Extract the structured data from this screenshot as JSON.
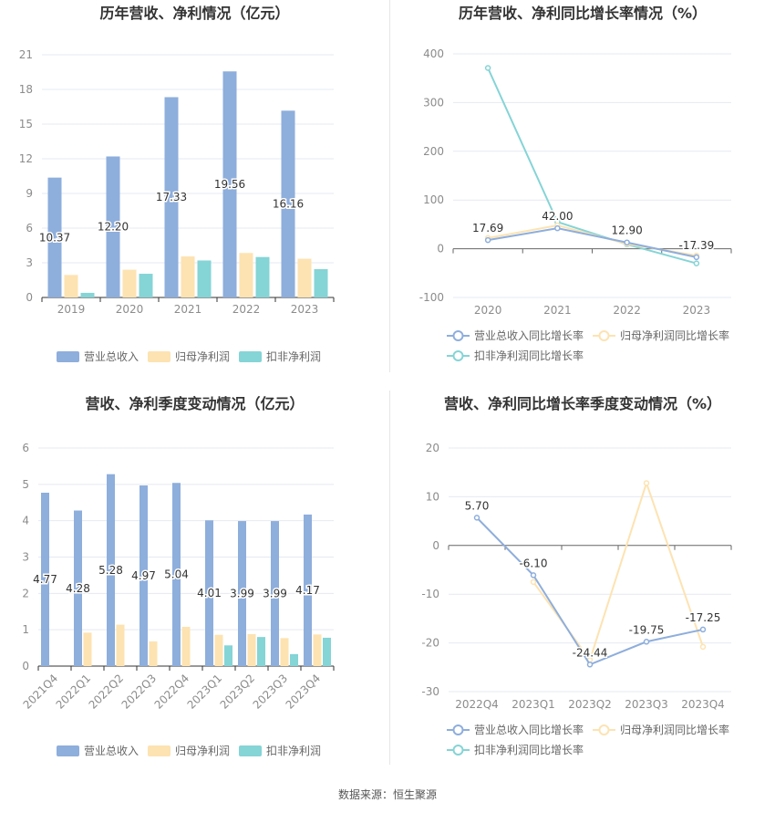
{
  "colors": {
    "revenue": "#8eaedc",
    "net_profit": "#fde3b2",
    "deducted_profit": "#85d4d6",
    "revenue_line": "#8eaedc",
    "net_profit_line": "#fde3b2",
    "deducted_profit_line": "#85d4d6",
    "grid": "#e6e9f0",
    "axis_text": "#8c8c8c",
    "title": "#333333",
    "label": "#333333"
  },
  "source_text": "数据来源：恒生聚源",
  "chart_data": [
    {
      "id": "annual-revenue-profit",
      "type": "bar",
      "title": "历年营收、净利情况（亿元）",
      "categories": [
        "2019",
        "2020",
        "2021",
        "2022",
        "2023"
      ],
      "ylim": [
        0,
        21
      ],
      "yticks": [
        0,
        3,
        6,
        9,
        12,
        15,
        18,
        21
      ],
      "series": [
        {
          "name": "营业总收入",
          "values": [
            10.37,
            12.2,
            17.33,
            19.56,
            16.16
          ],
          "labels": [
            "10.37",
            "12.20",
            "17.33",
            "19.56",
            "16.16"
          ]
        },
        {
          "name": "归母净利润",
          "values": [
            1.95,
            2.4,
            3.55,
            3.85,
            3.35
          ]
        },
        {
          "name": "扣非净利润",
          "values": [
            0.4,
            2.05,
            3.2,
            3.5,
            2.45
          ]
        }
      ],
      "legend_position": "bottom"
    },
    {
      "id": "annual-growth",
      "type": "line",
      "title": "历年营收、净利同比增长率情况（%）",
      "categories": [
        "2020",
        "2021",
        "2022",
        "2023"
      ],
      "ylim": [
        -100,
        400
      ],
      "yticks": [
        -100,
        0,
        100,
        200,
        300,
        400
      ],
      "series": [
        {
          "name": "营业总收入同比增长率",
          "values": [
            17.69,
            42.0,
            12.9,
            -17.39
          ],
          "labels": [
            "17.69",
            "42.00",
            "12.90",
            "-17.39"
          ]
        },
        {
          "name": "归母净利润同比增长率",
          "values": [
            22,
            48,
            10,
            -14
          ]
        },
        {
          "name": "扣非净利润同比增长率",
          "values": [
            371,
            55,
            9,
            -30
          ]
        }
      ],
      "legend_position": "bottom"
    },
    {
      "id": "quarterly-revenue-profit",
      "type": "bar",
      "title": "营收、净利季度变动情况（亿元）",
      "categories": [
        "2021Q4",
        "2022Q1",
        "2022Q2",
        "2022Q3",
        "2022Q4",
        "2023Q1",
        "2023Q2",
        "2023Q3",
        "2023Q4"
      ],
      "ylim": [
        0,
        6
      ],
      "yticks": [
        0,
        1,
        2,
        3,
        4,
        5,
        6
      ],
      "series": [
        {
          "name": "营业总收入",
          "values": [
            4.77,
            4.28,
            5.28,
            4.97,
            5.04,
            4.01,
            3.99,
            3.99,
            4.17
          ],
          "labels": [
            "4.77",
            "4.28",
            "5.28",
            "4.97",
            "5.04",
            "4.01",
            "3.99",
            "3.99",
            "4.17"
          ]
        },
        {
          "name": "归母净利润",
          "values": [
            0,
            0.92,
            1.14,
            0.68,
            1.08,
            0.86,
            0.88,
            0.77,
            0.87
          ]
        },
        {
          "name": "扣非净利润",
          "values": [
            0,
            0,
            0,
            0,
            0,
            0.57,
            0.8,
            0.33,
            0.78
          ]
        }
      ],
      "legend_position": "bottom"
    },
    {
      "id": "quarterly-growth",
      "type": "line",
      "title": "营收、净利同比增长率季度变动情况（%）",
      "categories": [
        "2022Q4",
        "2023Q1",
        "2023Q2",
        "2023Q3",
        "2023Q4"
      ],
      "ylim": [
        -30,
        20
      ],
      "yticks": [
        -30,
        -20,
        -10,
        0,
        10,
        20
      ],
      "series": [
        {
          "name": "营业总收入同比增长率",
          "values": [
            5.7,
            -6.1,
            -24.44,
            -19.75,
            -17.25
          ],
          "labels": [
            "5.70",
            "-6.10",
            "-24.44",
            "-19.75",
            "-17.25"
          ]
        },
        {
          "name": "归母净利润同比增长率",
          "values": [
            null,
            -7.5,
            -23.5,
            12.8,
            -20.8
          ]
        },
        {
          "name": "扣非净利润同比增长率",
          "values": [
            null,
            null,
            null,
            null,
            null
          ]
        }
      ],
      "legend_position": "bottom"
    }
  ]
}
